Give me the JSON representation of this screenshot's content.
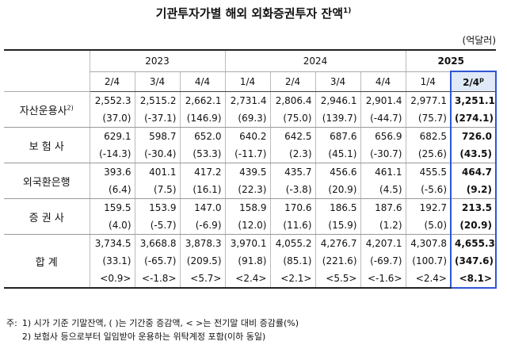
{
  "title": {
    "text": "기관투자가별 해외 외화증권투자 잔액",
    "note": "1)"
  },
  "unit": "(억달러)",
  "table": {
    "years": [
      {
        "label": "2023",
        "quarters": [
          "2/4",
          "3/4",
          "4/4"
        ]
      },
      {
        "label": "2024",
        "quarters": [
          "1/4",
          "2/4",
          "3/4",
          "4/4"
        ]
      },
      {
        "label": "2025",
        "quarters": [
          "1/4",
          "2/4"
        ],
        "sup": "p"
      }
    ],
    "rows": [
      {
        "label": "자산운용사",
        "note": "2)",
        "lines": [
          [
            "2,552.3",
            "2,515.2",
            "2,662.1",
            "2,731.4",
            "2,806.4",
            "2,946.1",
            "2,901.4",
            "2,977.1",
            "3,251.1"
          ],
          [
            "(37.0)",
            "(-37.1)",
            "(146.9)",
            "(69.3)",
            "(75.0)",
            "(139.7)",
            "(-44.7)",
            "(75.7)",
            "(274.1)"
          ]
        ]
      },
      {
        "label": "보 험 사",
        "lines": [
          [
            "629.1",
            "598.7",
            "652.0",
            "640.2",
            "642.5",
            "687.6",
            "656.9",
            "682.5",
            "726.0"
          ],
          [
            "(-14.3)",
            "(-30.4)",
            "(53.3)",
            "(-11.7)",
            "(2.3)",
            "(45.1)",
            "(-30.7)",
            "(25.6)",
            "(43.5)"
          ]
        ]
      },
      {
        "label": "외국환은행",
        "lines": [
          [
            "393.6",
            "401.1",
            "417.2",
            "439.5",
            "435.7",
            "456.6",
            "461.1",
            "455.5",
            "464.7"
          ],
          [
            "(6.4)",
            "(7.5)",
            "(16.1)",
            "(22.3)",
            "(-3.8)",
            "(20.9)",
            "(4.5)",
            "(-5.6)",
            "(9.2)"
          ]
        ]
      },
      {
        "label": "증 권 사",
        "lines": [
          [
            "159.5",
            "153.9",
            "147.0",
            "158.9",
            "170.6",
            "186.5",
            "187.6",
            "192.7",
            "213.5"
          ],
          [
            "(4.0)",
            "(-5.7)",
            "(-6.9)",
            "(12.0)",
            "(11.6)",
            "(15.9)",
            "(1.2)",
            "(5.0)",
            "(20.9)"
          ]
        ]
      },
      {
        "label": "합 계",
        "lines": [
          [
            "3,734.5",
            "3,668.8",
            "3,878.3",
            "3,970.1",
            "4,055.2",
            "4,276.7",
            "4,207.1",
            "4,307.8",
            "4,655.3"
          ],
          [
            "(33.1)",
            "(-65.7)",
            "(209.5)",
            "(91.8)",
            "(85.1)",
            "(221.6)",
            "(-69.7)",
            "(100.7)",
            "(347.6)"
          ],
          [
            "<0.9>",
            "<-1.8>",
            "<5.7>",
            "<2.4>",
            "<2.1>",
            "<5.5>",
            "<-1.6>",
            "<2.4>",
            "<8.1>"
          ]
        ]
      }
    ]
  },
  "footnotes": {
    "prefix": "주:",
    "items": [
      "1) 시가 기준 기말잔액, (   )는 기간중 증감액, <   >는 전기말 대비 증감률(%)",
      "2) 보험사 등으로부터 일임받아 운용하는 위탁계정 포함(이하 동일)"
    ]
  }
}
